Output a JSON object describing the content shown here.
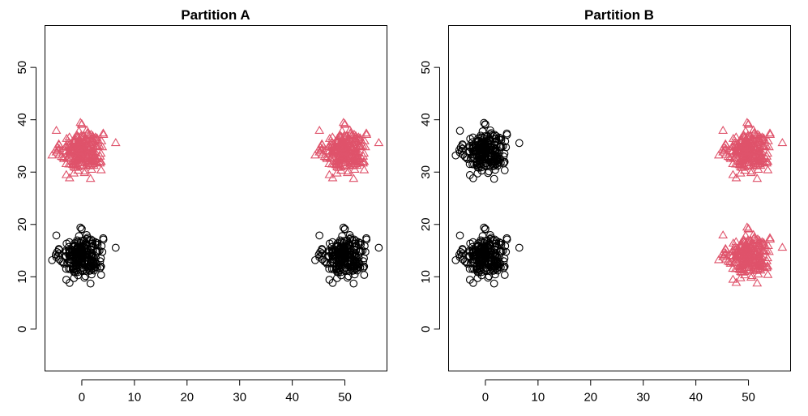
{
  "chart_data": [
    {
      "type": "scatter",
      "title": "Partition A",
      "xlabel": "",
      "ylabel": "",
      "xlim": [
        -7,
        58
      ],
      "ylim": [
        -8,
        58
      ],
      "x_ticks": [
        "0",
        "10",
        "20",
        "30",
        "40",
        "50"
      ],
      "y_ticks": [
        "0",
        "10",
        "20",
        "30",
        "40",
        "50"
      ],
      "grid": false,
      "clusters": [
        {
          "center": [
            0,
            14
          ],
          "n": 250,
          "sd": 2.0,
          "marker": "circle",
          "color": "#000000"
        },
        {
          "center": [
            50,
            14
          ],
          "n": 250,
          "sd": 2.0,
          "marker": "circle",
          "color": "#000000"
        },
        {
          "center": [
            0,
            34
          ],
          "n": 250,
          "sd": 2.0,
          "marker": "triangle",
          "color": "#DF536B"
        },
        {
          "center": [
            50,
            34
          ],
          "n": 250,
          "sd": 2.0,
          "marker": "triangle",
          "color": "#DF536B"
        }
      ]
    },
    {
      "type": "scatter",
      "title": "Partition B",
      "xlabel": "",
      "ylabel": "",
      "xlim": [
        -7,
        58
      ],
      "ylim": [
        -8,
        58
      ],
      "x_ticks": [
        "0",
        "10",
        "20",
        "30",
        "40",
        "50"
      ],
      "y_ticks": [
        "0",
        "10",
        "20",
        "30",
        "40",
        "50"
      ],
      "grid": false,
      "clusters": [
        {
          "center": [
            0,
            14
          ],
          "n": 250,
          "sd": 2.0,
          "marker": "circle",
          "color": "#000000"
        },
        {
          "center": [
            0,
            34
          ],
          "n": 250,
          "sd": 2.0,
          "marker": "circle",
          "color": "#000000"
        },
        {
          "center": [
            50,
            14
          ],
          "n": 250,
          "sd": 2.0,
          "marker": "triangle",
          "color": "#DF536B"
        },
        {
          "center": [
            50,
            34
          ],
          "n": 250,
          "sd": 2.0,
          "marker": "triangle",
          "color": "#DF536B"
        }
      ]
    }
  ]
}
